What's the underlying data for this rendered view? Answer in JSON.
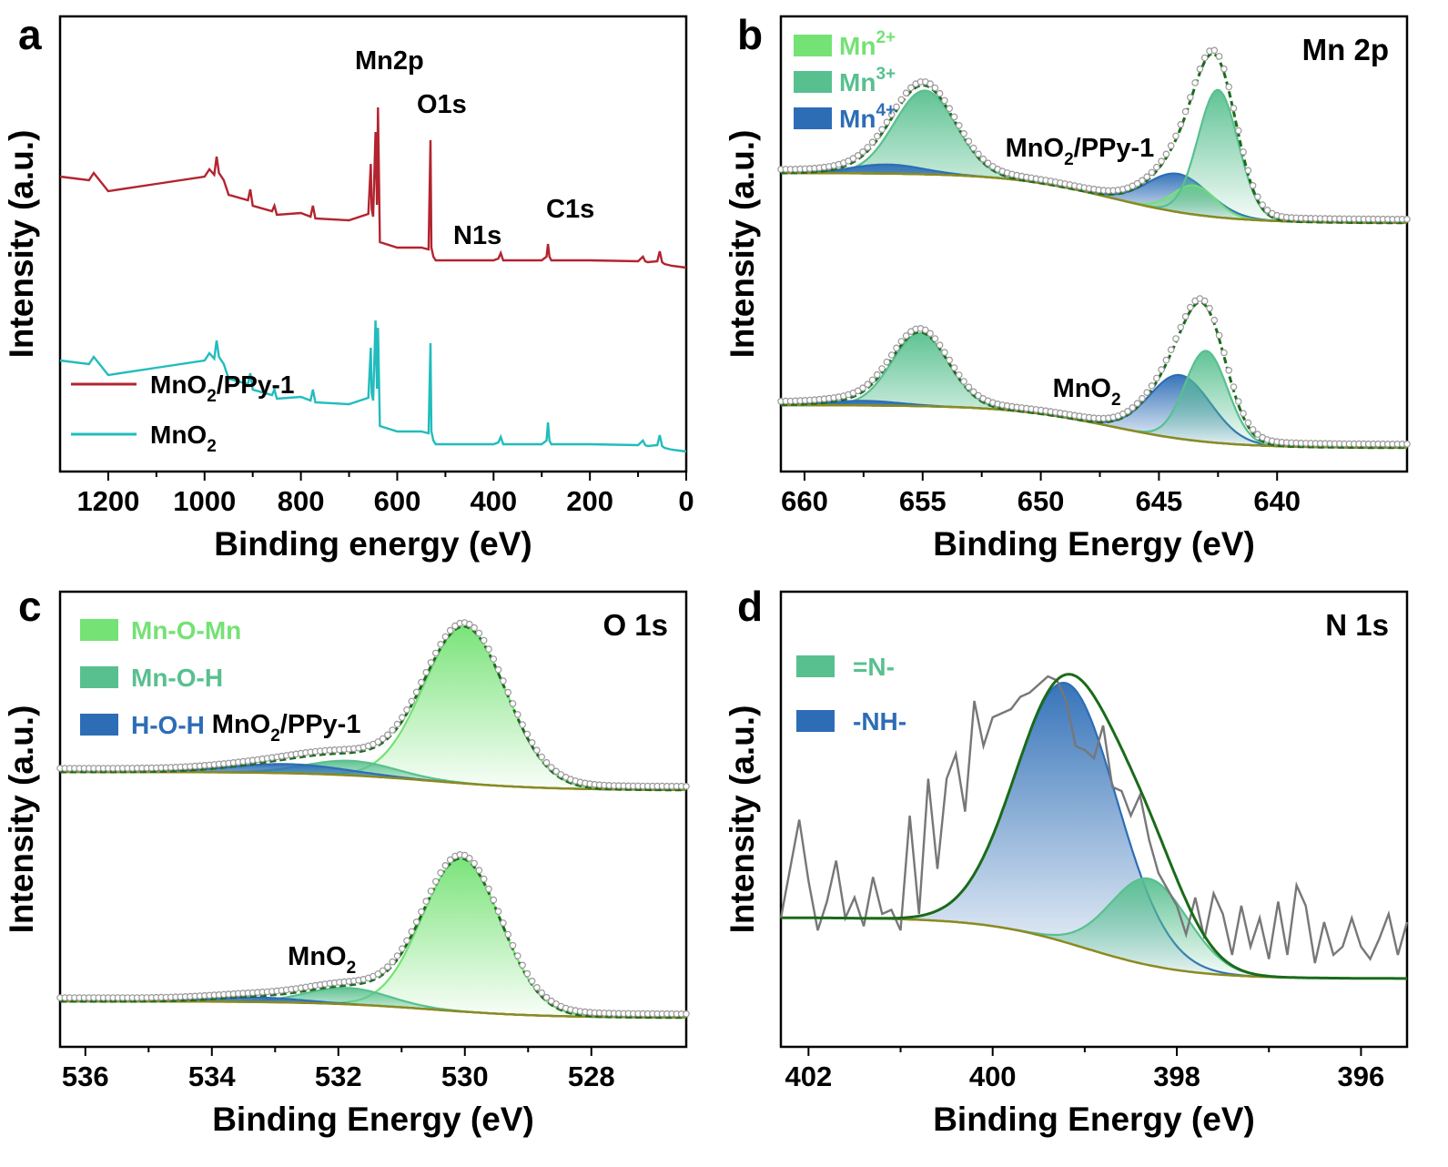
{
  "chart_data": [
    {
      "panel": "a",
      "type": "line",
      "xlabel": "Binding energy (eV)",
      "ylabel": "Intensity (a.u.)",
      "xlim": [
        1300,
        0
      ],
      "xticks": [
        1200,
        1000,
        800,
        600,
        400,
        200,
        0
      ],
      "annotations": [
        {
          "text": "Mn2p",
          "x": 642
        },
        {
          "text": "O1s",
          "x": 530
        },
        {
          "text": "N1s",
          "x": 400
        },
        {
          "text": "C1s",
          "x": 285
        }
      ],
      "legend": {
        "position": "bottom-left"
      },
      "series": [
        {
          "name": "MnO2/PPy-1",
          "label_main": "MnO",
          "label_sub": "2",
          "label_rest": "/PPy-1",
          "color": "#b2242f",
          "x": [
            1300,
            1240,
            1230,
            1200,
            1100,
            1000,
            990,
            980,
            975,
            970,
            960,
            950,
            910,
            905,
            900,
            860,
            855,
            850,
            800,
            780,
            775,
            770,
            700,
            660,
            655,
            653,
            650,
            645,
            642,
            640,
            636,
            600,
            550,
            535,
            531,
            529,
            525,
            520,
            450,
            400,
            390,
            385,
            380,
            370,
            300,
            290,
            287,
            284,
            280,
            200,
            100,
            90,
            85,
            80,
            60,
            55,
            50,
            45,
            30,
            0
          ],
          "y": [
            96,
            92,
            100,
            80,
            88,
            96,
            104,
            98,
            118,
            100,
            92,
            76,
            70,
            82,
            64,
            58,
            64,
            54,
            56,
            52,
            64,
            50,
            48,
            55,
            110,
            60,
            52,
            145,
            65,
            172,
            24,
            18,
            18,
            16,
            136,
            18,
            8,
            4,
            4,
            4,
            6,
            12,
            4,
            4,
            4,
            8,
            22,
            8,
            4,
            4,
            3,
            8,
            3,
            2,
            3,
            14,
            2,
            0,
            -2,
            -4
          ]
        },
        {
          "name": "MnO2",
          "label_main": "MnO",
          "label_sub": "2",
          "label_rest": "",
          "color": "#22bcbc",
          "x": [
            1300,
            1240,
            1230,
            1200,
            1100,
            1000,
            990,
            980,
            975,
            970,
            960,
            950,
            910,
            905,
            900,
            860,
            855,
            850,
            800,
            780,
            775,
            770,
            700,
            660,
            655,
            653,
            650,
            645,
            642,
            640,
            636,
            600,
            550,
            535,
            531,
            529,
            525,
            520,
            450,
            400,
            390,
            385,
            380,
            370,
            300,
            290,
            287,
            284,
            280,
            200,
            100,
            90,
            85,
            80,
            60,
            55,
            50,
            45,
            30,
            0
          ],
          "y": [
            96,
            92,
            100,
            80,
            88,
            96,
            104,
            98,
            118,
            100,
            92,
            76,
            70,
            82,
            64,
            58,
            64,
            54,
            56,
            52,
            64,
            50,
            48,
            55,
            110,
            60,
            52,
            140,
            65,
            132,
            24,
            18,
            18,
            16,
            115,
            18,
            8,
            4,
            4,
            4,
            6,
            12,
            4,
            4,
            4,
            8,
            28,
            8,
            4,
            4,
            3,
            8,
            3,
            2,
            3,
            14,
            2,
            0,
            -2,
            -4
          ]
        }
      ]
    },
    {
      "panel": "b",
      "type": "area",
      "title": "Mn 2p",
      "xlabel": "Binding Energy (eV)",
      "ylabel": "Intensity (a.u.)",
      "xlim": [
        661,
        634.5
      ],
      "xticks": [
        660,
        655,
        650,
        645,
        640
      ],
      "legend": {
        "position": "top-left"
      },
      "components": [
        {
          "name": "Mn2+",
          "label_main": "Mn",
          "label_sup": "2+",
          "color": "#74e274"
        },
        {
          "name": "Mn3+",
          "label_main": "Mn",
          "label_sup": "3+",
          "color": "#58c08f"
        },
        {
          "name": "Mn4+",
          "label_main": "Mn",
          "label_sup": "4+",
          "color": "#2d6db6"
        }
      ],
      "spectra": [
        {
          "name": "MnO2/PPy-1",
          "label_main": "MnO",
          "label_sub": "2",
          "label_rest": "/PPy-1",
          "label_x": 651.5,
          "peaks": [
            {
              "component": "Mn3+",
              "center": 654.9,
              "height": 92,
              "width": 1.3
            },
            {
              "component": "Mn4+",
              "center": 656.5,
              "height": 10,
              "width": 1.5
            },
            {
              "component": "Mn4+",
              "center": 644.2,
              "height": 42,
              "width": 1.3
            },
            {
              "component": "Mn2+",
              "center": 643.5,
              "height": 32,
              "width": 0.9
            },
            {
              "component": "Mn3+",
              "center": 642.5,
              "height": 140,
              "width": 0.85
            }
          ]
        },
        {
          "name": "MnO2",
          "label_main": "MnO",
          "label_sub": "2",
          "label_rest": "",
          "label_x": 649.5,
          "peaks": [
            {
              "component": "Mn3+",
              "center": 655.1,
              "height": 80,
              "width": 1.2
            },
            {
              "component": "Mn4+",
              "center": 657.5,
              "height": 5,
              "width": 1.5
            },
            {
              "component": "Mn4+",
              "center": 644.1,
              "height": 70,
              "width": 1.3
            },
            {
              "component": "Mn3+",
              "center": 643.0,
              "height": 100,
              "width": 0.9
            }
          ]
        }
      ]
    },
    {
      "panel": "c",
      "type": "area",
      "title": "O 1s",
      "xlabel": "Binding Energy (eV)",
      "ylabel": "Intensity (a.u.)",
      "xlim": [
        536.4,
        526.5
      ],
      "xticks": [
        536,
        534,
        532,
        530,
        528
      ],
      "legend": {
        "position": "top-left"
      },
      "components": [
        {
          "name": "Mn-O-Mn",
          "label_main": "Mn-O-Mn",
          "color": "#74e274"
        },
        {
          "name": "Mn-O-H",
          "label_main": "Mn-O-H",
          "color": "#58c08f"
        },
        {
          "name": "H-O-H",
          "label_main": "H-O-H",
          "color": "#2d6db6"
        }
      ],
      "spectra": [
        {
          "name": "MnO2/PPy-1",
          "label_main": "MnO",
          "label_sub": "2",
          "label_rest": "/PPy-1",
          "label_x": 534.0,
          "peaks": [
            {
              "component": "Mn-O-Mn",
              "center": 530.0,
              "height": 172,
              "width": 0.65
            },
            {
              "component": "Mn-O-H",
              "center": 531.8,
              "height": 16,
              "width": 0.7
            },
            {
              "component": "H-O-H",
              "center": 532.8,
              "height": 10,
              "width": 0.9
            }
          ]
        },
        {
          "name": "MnO2",
          "label_main": "MnO",
          "label_sub": "2",
          "label_rest": "",
          "label_x": 532.8,
          "peaks": [
            {
              "component": "Mn-O-Mn",
              "center": 530.05,
              "height": 168,
              "width": 0.62
            },
            {
              "component": "Mn-O-H",
              "center": 531.85,
              "height": 18,
              "width": 0.65
            },
            {
              "component": "H-O-H",
              "center": 533.3,
              "height": 5,
              "width": 0.7
            }
          ]
        }
      ]
    },
    {
      "panel": "d",
      "type": "area",
      "title": "N 1s",
      "xlabel": "Binding Energy (eV)",
      "ylabel": "Intensity (a.u.)",
      "xlim": [
        402.3,
        395.5
      ],
      "xticks": [
        402,
        400,
        398,
        396
      ],
      "legend": {
        "position": "top-left"
      },
      "components": [
        {
          "name": "=N-",
          "label_main": "=N-",
          "color": "#58c08f"
        },
        {
          "name": "-NH-",
          "label_main": "-NH-",
          "color": "#2d6db6"
        }
      ],
      "peaks": [
        {
          "component": "-NH-",
          "center": 399.2,
          "height": 285,
          "width": 0.55
        },
        {
          "component": "=N-",
          "center": 398.3,
          "height": 95,
          "width": 0.42
        }
      ],
      "raw": {
        "x": [
          402.3,
          402.1,
          402.0,
          401.9,
          401.8,
          401.7,
          401.6,
          401.5,
          401.4,
          401.3,
          401.2,
          401.1,
          401.0,
          400.9,
          400.8,
          400.7,
          400.6,
          400.5,
          400.4,
          400.3,
          400.2,
          400.1,
          400.0,
          399.9,
          399.8,
          399.7,
          399.6,
          399.5,
          399.4,
          399.3,
          399.2,
          399.1,
          399.0,
          398.9,
          398.8,
          398.7,
          398.6,
          398.5,
          398.4,
          398.3,
          398.2,
          398.1,
          398.0,
          397.9,
          397.8,
          397.7,
          397.6,
          397.5,
          397.4,
          397.3,
          397.2,
          397.1,
          397.0,
          396.9,
          396.8,
          396.7,
          396.6,
          396.5,
          396.4,
          396.3,
          396.2,
          396.1,
          396.0,
          395.9,
          395.8,
          395.7,
          395.6,
          395.5
        ],
        "y": [
          5,
          125,
          50,
          -10,
          25,
          75,
          5,
          30,
          -5,
          55,
          10,
          15,
          -10,
          130,
          10,
          175,
          65,
          175,
          205,
          135,
          270,
          215,
          250,
          255,
          260,
          275,
          280,
          290,
          300,
          295,
          270,
          215,
          210,
          200,
          240,
          165,
          160,
          130,
          155,
          100,
          60,
          40,
          20,
          -15,
          30,
          -20,
          35,
          10,
          -40,
          20,
          -30,
          5,
          -45,
          25,
          -40,
          45,
          20,
          -50,
          0,
          -40,
          -30,
          5,
          -30,
          -45,
          -20,
          10,
          -40,
          0
        ]
      }
    }
  ]
}
